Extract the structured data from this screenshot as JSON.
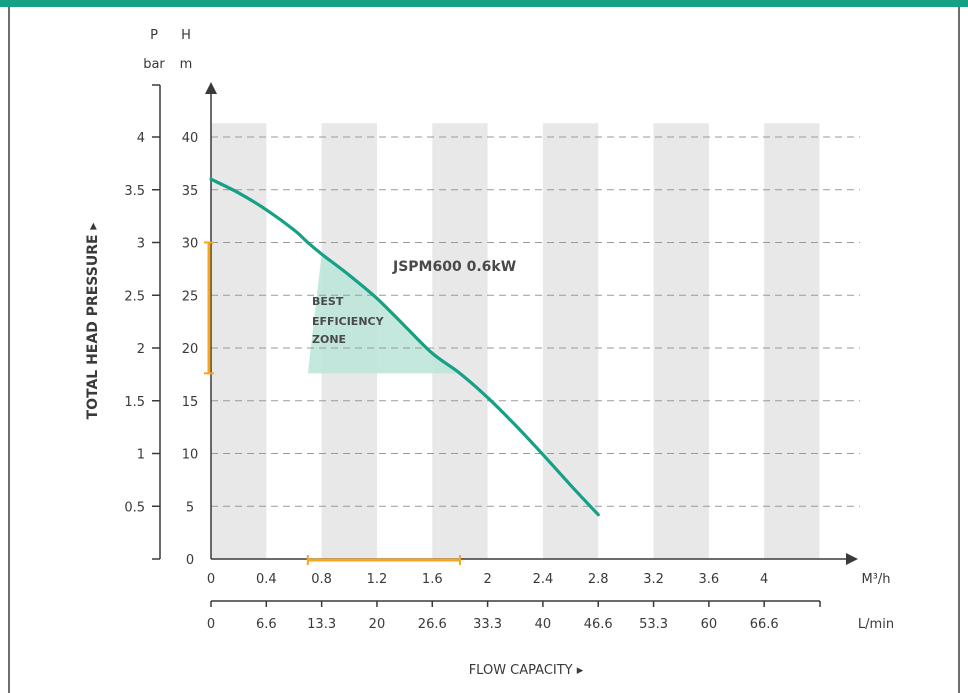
{
  "chart_data": {
    "type": "line",
    "title": "",
    "xlabel": "FLOW CAPACITY ▸",
    "ylabel": "TOTAL HEAD PRESSURE ▸",
    "y_left_unit": [
      "P",
      "bar"
    ],
    "y_right_unit": [
      "H",
      "m"
    ],
    "x_unit": "M³/h",
    "x2_unit": "L/min",
    "xlim": [
      0,
      4.6
    ],
    "ylim": [
      0,
      42
    ],
    "x_ticks": [
      "0",
      "0.4",
      "0.8",
      "1.2",
      "1.6",
      "2",
      "2.4",
      "2.8",
      "3.2",
      "3.6",
      "4"
    ],
    "x_tick_values": [
      0,
      0.4,
      0.8,
      1.2,
      1.6,
      2,
      2.4,
      2.8,
      3.2,
      3.6,
      4
    ],
    "x2_ticks": [
      "0",
      "6.6",
      "13.3",
      "20",
      "26.6",
      "33.3",
      "40",
      "46.6",
      "53.3",
      "60",
      "66.6"
    ],
    "y_bar_ticks": [
      "0.5",
      "1",
      "1.5",
      "2",
      "2.5",
      "3",
      "3.5",
      "4"
    ],
    "y_m_ticks": [
      "0",
      "5",
      "10",
      "15",
      "20",
      "25",
      "30",
      "35",
      "40"
    ],
    "y_m_values": [
      0,
      5,
      10,
      15,
      20,
      25,
      30,
      35,
      40
    ],
    "grid": true,
    "series": [
      {
        "name": "JSPM600 0.6kW",
        "x": [
          0,
          0.2,
          0.4,
          0.6,
          0.7,
          0.8,
          1.0,
          1.2,
          1.4,
          1.6,
          1.8,
          2.0,
          2.2,
          2.4,
          2.6,
          2.8
        ],
        "y": [
          36,
          34.7,
          33.1,
          31.2,
          30,
          28.9,
          26.9,
          24.7,
          22.1,
          19.5,
          17.6,
          15.3,
          12.7,
          9.9,
          7.0,
          4.2
        ]
      }
    ],
    "annotations": {
      "zone_label": [
        "BEST",
        "EFFICIENCY",
        "ZONE"
      ],
      "zone_x": [
        0.7,
        1.8
      ],
      "zone_y": [
        17.6,
        30
      ]
    },
    "colors": {
      "curve": "#16a085",
      "zone": "#bfe6da",
      "band": "#e8e8e8",
      "marker": "#f5a623",
      "accent": "#16a085"
    }
  }
}
